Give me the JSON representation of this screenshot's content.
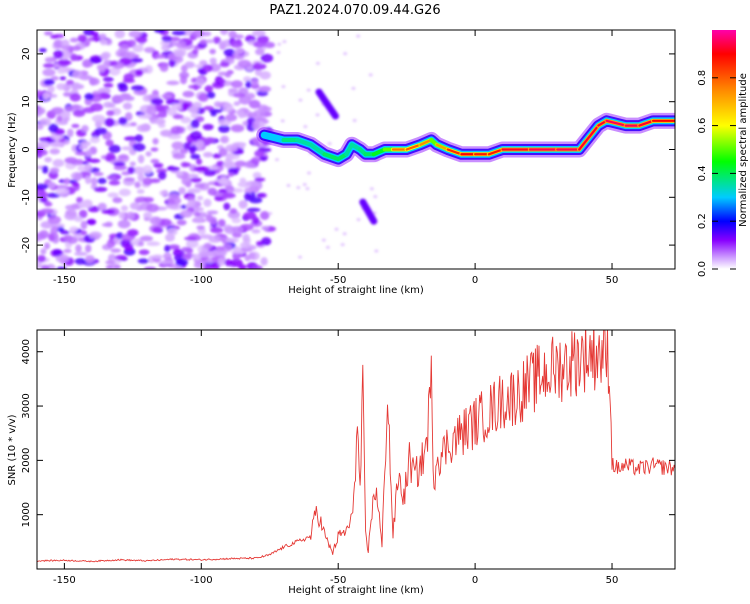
{
  "title": "PAZ1.2024.070.09.44.G26",
  "chart_data": [
    {
      "type": "heatmap",
      "xlabel": "Height of straight line (km)",
      "ylabel": "Frequency (Hz)",
      "xlim": [
        -160,
        73
      ],
      "ylim": [
        -25,
        25
      ],
      "x_ticks": [
        -150,
        -100,
        -50,
        0,
        50
      ],
      "y_ticks": [
        -20,
        -10,
        0,
        10,
        20
      ],
      "colorbar": {
        "label": "Normalized spectral amplitude",
        "range": [
          0,
          1
        ],
        "ticks": [
          0.0,
          0.2,
          0.4,
          0.6,
          0.8
        ],
        "colors": [
          "#ffffff",
          "#cc99ff",
          "#8800ff",
          "#0000ff",
          "#00ccff",
          "#00ff00",
          "#ffff00",
          "#ff8800",
          "#ff0000",
          "#ff00aa"
        ]
      },
      "noise_region_x": [
        -160,
        -75
      ],
      "ridge": {
        "x": [
          -77,
          -70,
          -65,
          -60,
          -55,
          -50,
          -47,
          -45,
          -42,
          -40,
          -37,
          -33,
          -30,
          -25,
          -20,
          -16,
          -14,
          -10,
          -5,
          0,
          5,
          10,
          20,
          30,
          38,
          45,
          48,
          55,
          60,
          65,
          73
        ],
        "y": [
          3,
          2,
          2,
          1,
          -1,
          -2,
          -1,
          1,
          0,
          -1,
          -1,
          0,
          0,
          0,
          1,
          2,
          1,
          0,
          -1,
          -1,
          -1,
          0,
          0,
          0,
          0,
          5,
          6,
          5,
          5,
          6,
          6
        ],
        "amplitude": [
          0.3,
          0.5,
          0.5,
          0.45,
          0.5,
          0.55,
          0.5,
          0.45,
          0.5,
          0.5,
          0.55,
          0.6,
          0.75,
          0.8,
          0.8,
          0.7,
          0.65,
          0.8,
          0.9,
          0.9,
          0.85,
          0.9,
          0.95,
          0.95,
          0.95,
          0.9,
          0.95,
          0.95,
          0.95,
          0.9,
          0.9
        ]
      },
      "streaks": [
        {
          "x": [
            -57,
            -51
          ],
          "y": [
            12,
            7
          ]
        },
        {
          "x": [
            -41,
            -37
          ],
          "y": [
            -11,
            -15
          ]
        }
      ]
    },
    {
      "type": "line",
      "xlabel": "Height of straight line (km)",
      "ylabel": "SNR (10 * v/v)",
      "xlim": [
        -160,
        73
      ],
      "ylim": [
        0,
        4400
      ],
      "x_ticks": [
        -150,
        -100,
        -50,
        0,
        50
      ],
      "y_ticks": [
        1000,
        2000,
        3000,
        4000
      ],
      "color": "#e53935",
      "series": [
        {
          "x": [
            -160,
            -150,
            -140,
            -130,
            -120,
            -110,
            -100,
            -90,
            -80,
            -75,
            -70,
            -65,
            -60,
            -58,
            -56,
            -54,
            -52,
            -50,
            -47,
            -45,
            -43,
            -42,
            -41,
            -40,
            -39,
            -38,
            -36,
            -34,
            -32,
            -30,
            -29,
            -28,
            -26,
            -24,
            -22,
            -20,
            -18,
            -16,
            -15,
            -14,
            -12,
            -10,
            -5,
            0,
            5,
            10,
            15,
            20,
            25,
            30,
            35,
            40,
            45,
            49,
            50,
            52,
            55,
            60,
            65,
            73
          ],
          "y": [
            150,
            160,
            140,
            170,
            150,
            180,
            170,
            190,
            200,
            260,
            400,
            500,
            600,
            1100,
            800,
            500,
            300,
            600,
            700,
            900,
            2500,
            1500,
            3200,
            600,
            300,
            1000,
            1500,
            400,
            3300,
            600,
            1200,
            1700,
            1300,
            2000,
            1700,
            1900,
            2200,
            3400,
            1600,
            2100,
            2100,
            2300,
            2500,
            2700,
            2900,
            3100,
            3200,
            3400,
            3600,
            3700,
            3800,
            3950,
            4000,
            3900,
            1950,
            1850,
            1900,
            1850,
            1900,
            1850
          ]
        }
      ]
    }
  ]
}
